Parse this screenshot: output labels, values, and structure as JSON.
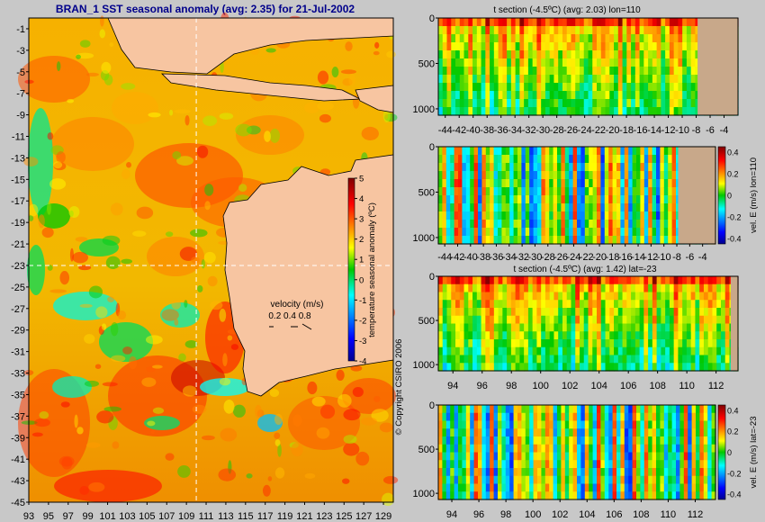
{
  "chart_data": [
    {
      "type": "heatmap",
      "title": "BRAN_1  SST seasonal anomaly  (avg: 2.35)  for 21-Jul-2002",
      "x_ticks": [
        "93",
        "95",
        "97",
        "99",
        "101",
        "103",
        "105",
        "107",
        "109",
        "111",
        "113",
        "115",
        "117",
        "119",
        "121",
        "123",
        "125",
        "127",
        "129"
      ],
      "y_ticks": [
        "-1",
        "-3",
        "-5",
        "-7",
        "-9",
        "-11",
        "-13",
        "-15",
        "-17",
        "-19",
        "-21",
        "-23",
        "-25",
        "-27",
        "-29",
        "-31",
        "-33",
        "-35",
        "-37",
        "-39",
        "-41",
        "-43",
        "-45"
      ],
      "xlim": [
        93,
        130
      ],
      "ylim": [
        -45,
        0
      ],
      "section_lines": {
        "lon": 110,
        "lat": -23
      },
      "colorbar": {
        "label": "temperature seasonal anomaly (ºC)",
        "ticks": [
          "5",
          "4",
          "3",
          "2",
          "1",
          "0",
          "-1",
          "-2",
          "-3",
          "-4"
        ],
        "range": [
          -4,
          5
        ]
      },
      "velocity_legend": {
        "title": "velocity (m/s)",
        "values": "0.2 0.4 0.8"
      },
      "copyright": "© Copyright CSIRO 2006"
    },
    {
      "type": "heatmap",
      "title": "t section (-4.5ºC)  (avg: 2.03) lon=110",
      "x_ticks": [
        "-44",
        "-42",
        "-40",
        "-38",
        "-36",
        "-34",
        "-32",
        "-30",
        "-28",
        "-26",
        "-24",
        "-22",
        "-20",
        "-18",
        "-16",
        "-14",
        "-12",
        "-10",
        "-8",
        "-6",
        "-4"
      ],
      "y_ticks": [
        "0",
        "500",
        "1000"
      ],
      "xlim": [
        -45,
        -2
      ],
      "ylim": [
        1070,
        0
      ]
    },
    {
      "type": "heatmap",
      "title": "",
      "x_ticks": [
        "-44",
        "-42",
        "-40",
        "-38",
        "-36",
        "-34",
        "-32",
        "-30",
        "-28",
        "-26",
        "-24",
        "-22",
        "-20",
        "-18",
        "-16",
        "-14",
        "-12",
        "-10",
        "-8",
        "-6",
        "-4"
      ],
      "y_ticks": [
        "0",
        "500",
        "1000"
      ],
      "xlim": [
        -45,
        -2
      ],
      "ylim": [
        1070,
        0
      ],
      "colorbar": {
        "label": "vel. E (m/s) lon=110",
        "ticks": [
          "0.4",
          "0.2",
          "0",
          "-0.2",
          "-0.4"
        ],
        "range": [
          -0.45,
          0.45
        ]
      }
    },
    {
      "type": "heatmap",
      "title": "t section (-4.5ºC)  (avg: 1.42) lat=-23",
      "x_ticks": [
        "94",
        "96",
        "98",
        "100",
        "102",
        "104",
        "106",
        "108",
        "110",
        "112"
      ],
      "y_ticks": [
        "0",
        "500",
        "1000"
      ],
      "xlim": [
        93,
        113.5
      ],
      "ylim": [
        1070,
        0
      ]
    },
    {
      "type": "heatmap",
      "title": "",
      "x_ticks": [
        "94",
        "96",
        "98",
        "100",
        "102",
        "104",
        "106",
        "108",
        "110",
        "112"
      ],
      "y_ticks": [
        "0",
        "500",
        "1000"
      ],
      "xlim": [
        93,
        113.5
      ],
      "ylim": [
        1070,
        0
      ],
      "colorbar": {
        "label": "vel. E (m/s) lat=-23",
        "ticks": [
          "0.4",
          "0.2",
          "0",
          "-0.2",
          "-0.4"
        ],
        "range": [
          -0.45,
          0.45
        ]
      }
    }
  ]
}
